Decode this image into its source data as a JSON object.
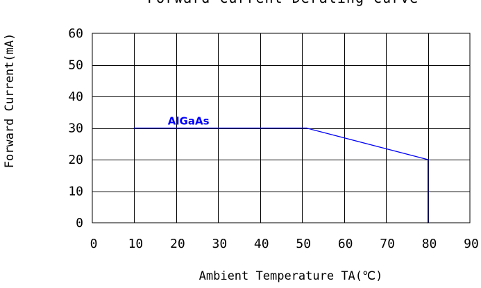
{
  "chart_data": {
    "type": "line",
    "title": "Forward Current Derating Curve",
    "xlabel": "Ambient Temperature TA(℃)",
    "ylabel": "Forward Current(mA)",
    "x_ticks": [
      0,
      10,
      20,
      30,
      40,
      50,
      60,
      70,
      80,
      90
    ],
    "y_ticks": [
      0,
      10,
      20,
      30,
      40,
      50,
      60
    ],
    "xlim": [
      0,
      90
    ],
    "ylim": [
      0,
      60
    ],
    "grid": true,
    "series": [
      {
        "name": "AlGaAs",
        "color": "#0000ff",
        "x": [
          10,
          51,
          80,
          80
        ],
        "y": [
          30,
          30,
          20,
          0
        ]
      }
    ]
  }
}
